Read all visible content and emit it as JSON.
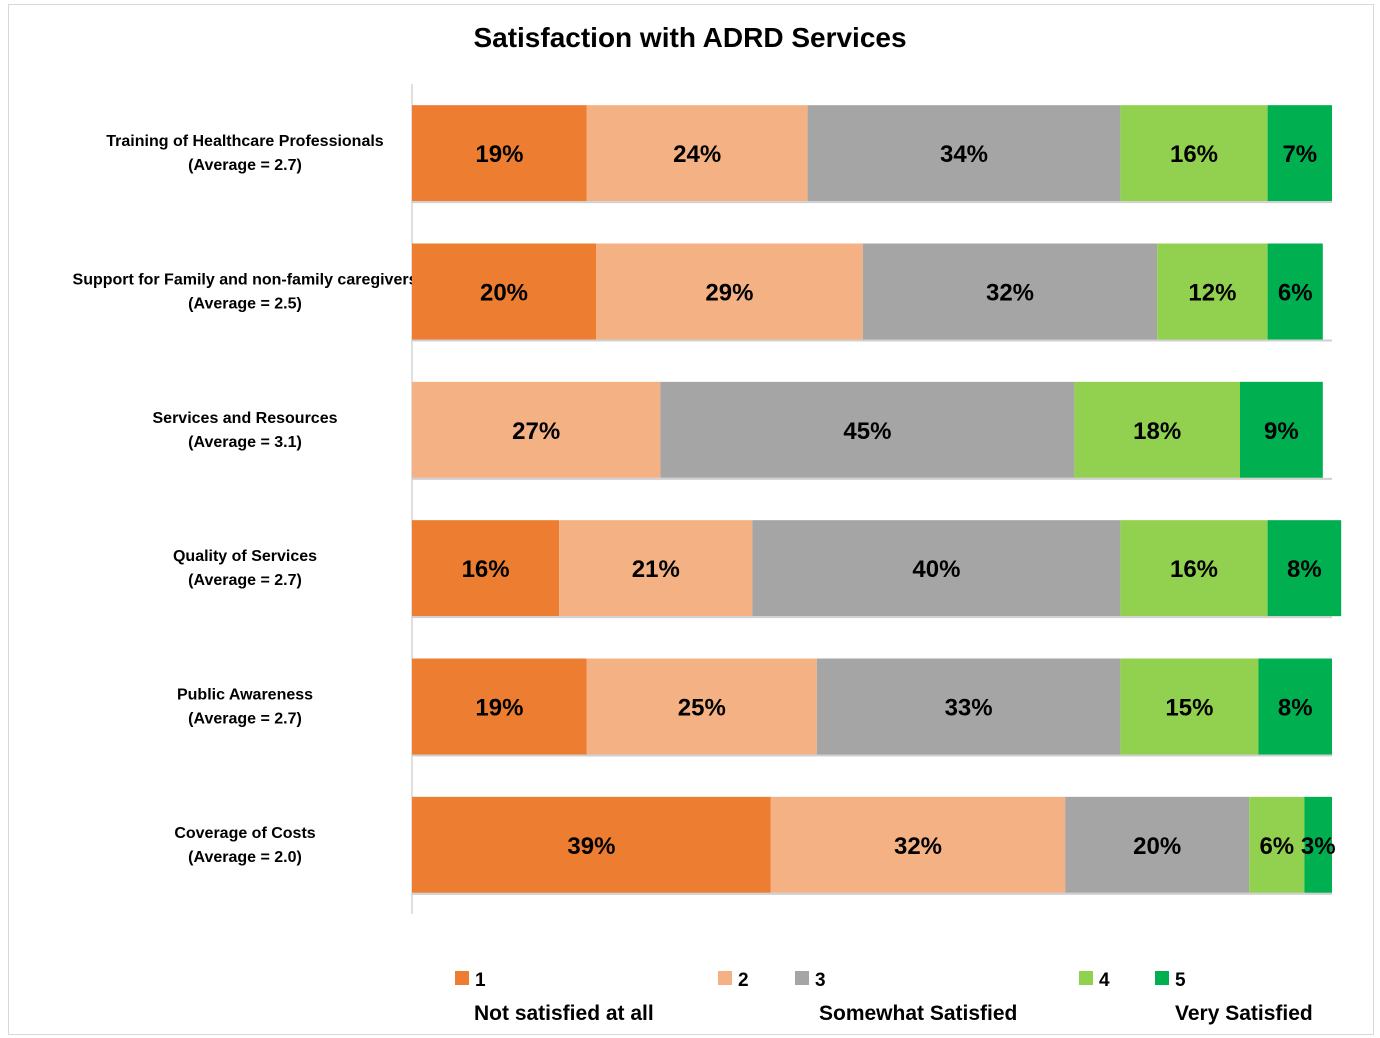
{
  "chart_data": {
    "type": "bar",
    "orientation": "horizontal",
    "stacked": true,
    "title": "Satisfaction with ADRD Services",
    "xlim": [
      0,
      100
    ],
    "grid": false,
    "legend_position": "bottom",
    "categories": [
      {
        "name": "Training of Healthcare Professionals",
        "average": "(Average = 2.7)"
      },
      {
        "name": "Support for Family  and non-family caregivers",
        "average": "(Average = 2.5)"
      },
      {
        "name": "Services and Resources",
        "average": "(Average = 3.1)"
      },
      {
        "name": "Quality of Services",
        "average": "(Average = 2.7)"
      },
      {
        "name": "Public Awareness",
        "average": "(Average = 2.7)"
      },
      {
        "name": "Coverage of Costs",
        "average": "(Average = 2.0)"
      }
    ],
    "series": [
      {
        "name": "1",
        "color": "#ED7D31",
        "values": [
          19,
          20,
          0,
          16,
          19,
          39
        ]
      },
      {
        "name": "2",
        "color": "#F4B183",
        "values": [
          24,
          29,
          27,
          21,
          25,
          32
        ]
      },
      {
        "name": "3",
        "color": "#A5A5A5",
        "values": [
          34,
          32,
          45,
          40,
          33,
          20
        ]
      },
      {
        "name": "4",
        "color": "#92D050",
        "values": [
          16,
          12,
          18,
          16,
          15,
          6
        ]
      },
      {
        "name": "5",
        "color": "#00B050",
        "values": [
          7,
          6,
          9,
          8,
          8,
          3
        ]
      }
    ],
    "legend_descriptions": [
      {
        "for_series": "1",
        "text": "Not satisfied at all"
      },
      {
        "for_series": "3",
        "text": "Somewhat Satisfied"
      },
      {
        "for_series": "5",
        "text": "Very Satisfied"
      }
    ]
  }
}
